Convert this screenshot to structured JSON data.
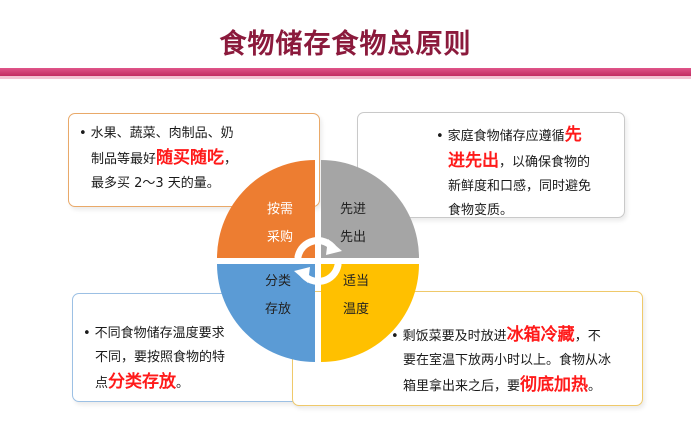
{
  "title": "食物储存食物总原则",
  "colors": {
    "title": "#8b1a3c",
    "rule": "#d23f72",
    "orange": "#ed7d31",
    "gray": "#a5a5a5",
    "blue": "#5b9bd5",
    "yellow": "#ffc000",
    "highlight": "#ff1a1a"
  },
  "quadrants": {
    "top_left": {
      "line1": "按需",
      "line2": "采购"
    },
    "top_right": {
      "line1": "先进",
      "line2": "先出"
    },
    "bottom_left": {
      "line1": "分类",
      "line2": "存放"
    },
    "bottom_right": {
      "line1": "适当",
      "line2": "温度"
    }
  },
  "boxes": {
    "top_left": {
      "bullet": "•",
      "line1": "水果、蔬菜、肉制品、奶",
      "line2_pre": "制品等最好",
      "line2_highlight": "随买随吃",
      "line2_post": "，",
      "line3": "最多买 2～3 天的量。"
    },
    "top_right": {
      "bullet": "•",
      "line1_pre": "家庭食物储存应遵循",
      "line1_highlight": "先",
      "line2_highlight": "进先出",
      "line2_post": "，以确保食物的",
      "line3": "新鲜度和口感，同时避免",
      "line4": "食物变质。"
    },
    "bottom_left": {
      "bullet": "•",
      "line1": "不同食物储存温度要求",
      "line2": "不同，要按照食物的特",
      "line3_pre": "点",
      "line3_highlight": "分类存放",
      "line3_post": "。"
    },
    "bottom_right": {
      "bullet": "•",
      "line1_pre": "剩饭菜要及时放进",
      "line1_highlight": "冰箱冷藏",
      "line1_post": "，不",
      "line2": "要在室温下放两小时以上。食物从冰",
      "line3_pre": "箱里拿出来之后，要",
      "line3_highlight": "彻底加热",
      "line3_post": "。"
    }
  }
}
